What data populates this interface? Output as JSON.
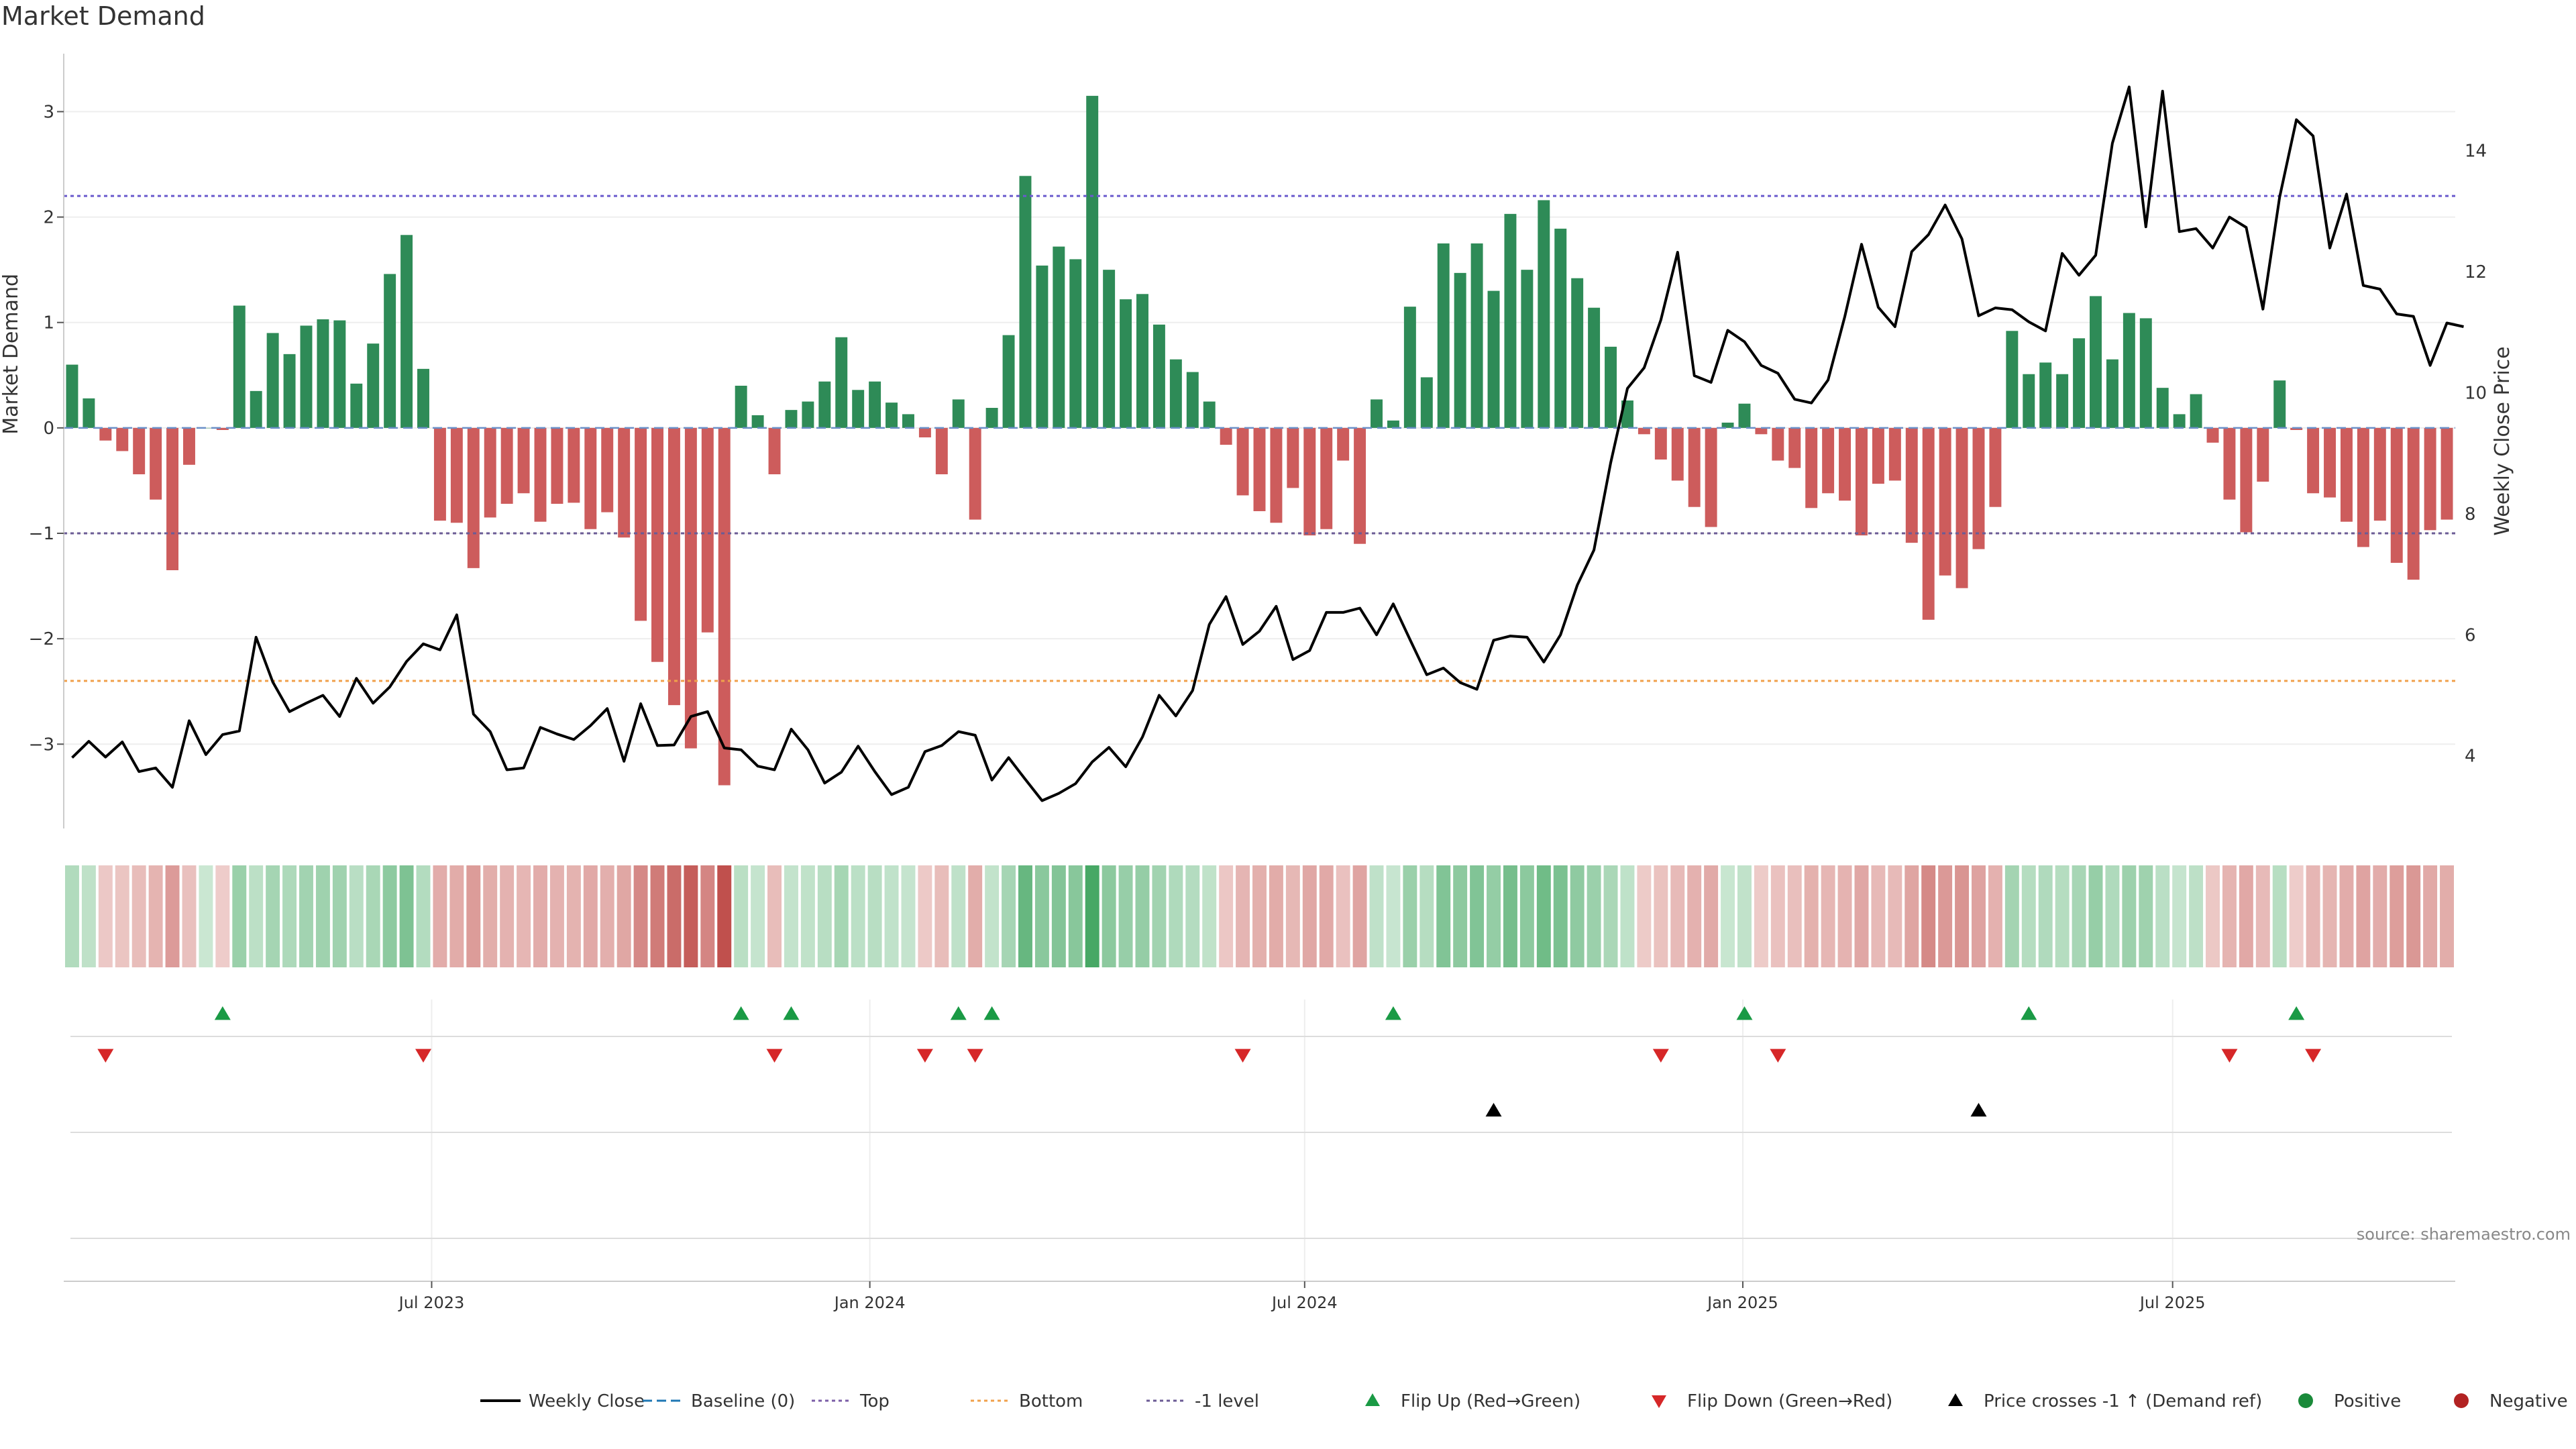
{
  "chart_data": {
    "type": "bar",
    "title": "Market Demand",
    "left_axis_label": "Market Demand",
    "right_axis_label": "Weekly Close Price",
    "left_ylim": [
      -3.8,
      3.55
    ],
    "right_ylim": [
      2.8,
      15.6
    ],
    "left_ticks": [
      -3,
      -2,
      -1,
      0,
      1,
      2,
      3
    ],
    "right_ticks": [
      4,
      6,
      8,
      10,
      12,
      14
    ],
    "x_tick_labels": [
      "Jul 2023",
      "Jan 2024",
      "Jul 2024",
      "Jan 2025",
      "Jul 2025"
    ],
    "x_tick_index": [
      21.5,
      47.7,
      73.7,
      99.9,
      125.6
    ],
    "top_level": 2.2,
    "bottom_level": -2.4,
    "minus_one_level": -1.0,
    "demand": [
      0.6,
      0.28,
      -0.12,
      -0.22,
      -0.44,
      -0.68,
      -1.35,
      -0.35,
      0.0,
      -0.02,
      1.16,
      0.35,
      0.9,
      0.7,
      0.97,
      1.03,
      1.02,
      0.42,
      0.8,
      1.46,
      1.83,
      0.56,
      -0.88,
      -0.9,
      -1.33,
      -0.85,
      -0.72,
      -0.62,
      -0.89,
      -0.72,
      -0.71,
      -0.96,
      -0.8,
      -1.04,
      -1.83,
      -2.22,
      -2.63,
      -3.04,
      -1.94,
      -3.39,
      0.4,
      0.12,
      -0.44,
      0.17,
      0.25,
      0.44,
      0.86,
      0.36,
      0.44,
      0.24,
      0.13,
      -0.09,
      -0.44,
      0.27,
      -0.87,
      0.19,
      0.88,
      2.39,
      1.54,
      1.72,
      1.6,
      3.15,
      1.5,
      1.22,
      1.27,
      0.98,
      0.65,
      0.53,
      0.25,
      -0.16,
      -0.64,
      -0.79,
      -0.9,
      -0.57,
      -1.02,
      -0.96,
      -0.31,
      -1.1,
      0.27,
      0.07,
      1.15,
      0.48,
      1.75,
      1.47,
      1.75,
      1.3,
      2.03,
      1.5,
      2.16,
      1.89,
      1.42,
      1.14,
      0.77,
      0.26,
      -0.06,
      -0.3,
      -0.5,
      -0.75,
      -0.94,
      0.05,
      0.23,
      -0.06,
      -0.31,
      -0.38,
      -0.76,
      -0.62,
      -0.69,
      -1.02,
      -0.53,
      -0.5,
      -1.09,
      -1.82,
      -1.4,
      -1.52,
      -1.15,
      -0.75,
      0.92,
      0.51,
      0.62,
      0.51,
      0.85,
      1.25,
      0.65,
      1.09,
      1.04,
      0.38,
      0.13,
      0.32,
      -0.14,
      -0.68,
      -0.99,
      -0.51,
      0.45,
      -0.02,
      -0.62,
      -0.66,
      -0.89,
      -1.13,
      -0.88,
      -1.28,
      -1.44,
      -0.97,
      -0.87
    ],
    "weekly_close": [
      3.97,
      4.24,
      3.98,
      4.23,
      3.74,
      3.8,
      3.48,
      4.58,
      4.02,
      4.35,
      4.41,
      5.96,
      5.22,
      4.73,
      4.87,
      5.0,
      4.65,
      5.28,
      4.87,
      5.14,
      5.56,
      5.85,
      5.75,
      6.33,
      4.69,
      4.4,
      3.77,
      3.8,
      4.47,
      4.36,
      4.27,
      4.5,
      4.78,
      3.91,
      4.86,
      4.17,
      4.18,
      4.65,
      4.73,
      4.13,
      4.1,
      3.83,
      3.77,
      4.44,
      4.1,
      3.55,
      3.73,
      4.16,
      3.74,
      3.36,
      3.48,
      4.07,
      4.17,
      4.4,
      4.34,
      3.6,
      3.97,
      3.61,
      3.26,
      3.38,
      3.54,
      3.9,
      4.14,
      3.82,
      4.31,
      5.0,
      4.66,
      5.08,
      6.17,
      6.63,
      5.84,
      6.06,
      6.47,
      5.59,
      5.74,
      6.37,
      6.37,
      6.44,
      6.0,
      6.51,
      5.92,
      5.34,
      5.45,
      5.21,
      5.1,
      5.91,
      5.98,
      5.96,
      5.55,
      6.0,
      6.82,
      7.4,
      8.84,
      10.07,
      10.41,
      11.2,
      12.32,
      10.28,
      10.17,
      11.03,
      10.84,
      10.45,
      10.32,
      9.89,
      9.83,
      10.21,
      11.26,
      12.45,
      11.41,
      11.09,
      12.33,
      12.61,
      13.1,
      12.54,
      11.27,
      11.4,
      11.37,
      11.17,
      11.02,
      12.3,
      11.94,
      12.27,
      14.12,
      15.05,
      12.74,
      14.98,
      12.66,
      12.71,
      12.39,
      12.9,
      12.73,
      11.38,
      13.23,
      14.51,
      14.24,
      12.39,
      13.28,
      11.77,
      11.71,
      11.3,
      11.26,
      10.45,
      11.15,
      11.09
    ],
    "flip_up": [
      9,
      40,
      43,
      53,
      55,
      79,
      100,
      117,
      133
    ],
    "flip_down": [
      2,
      21,
      42,
      51,
      54,
      70,
      95,
      102,
      129,
      134
    ],
    "price_cross": [
      85,
      114
    ],
    "legend": [
      {
        "label": "Weekly Close",
        "kind": "line",
        "color": "#000000"
      },
      {
        "label": "Baseline (0)",
        "kind": "dash",
        "color": "#1f77b4"
      },
      {
        "label": "Top",
        "kind": "dot",
        "color": "#7b5ea7"
      },
      {
        "label": "Bottom",
        "kind": "dot",
        "color": "#f0a04b"
      },
      {
        "label": "-1 level",
        "kind": "dot",
        "color": "#6b5b95"
      },
      {
        "label": "Flip Up (Red→Green)",
        "kind": "tri-up",
        "color": "#1a9a45"
      },
      {
        "label": "Flip Down (Green→Red)",
        "kind": "tri-down",
        "color": "#d62728"
      },
      {
        "label": "Price crosses -1 ↑ (Demand ref)",
        "kind": "tri-up",
        "color": "#000000"
      },
      {
        "label": "Positive",
        "kind": "circle",
        "color": "#1a8a3a"
      },
      {
        "label": "Negative",
        "kind": "circle",
        "color": "#b22222"
      }
    ],
    "source": "source: sharemaestro.com"
  },
  "colors": {
    "positive": "#2e8b57",
    "negative": "#cd5c5c",
    "line": "#000000",
    "top": "#6a5acd",
    "bottom": "#f0a04b",
    "minus_one": "#6b5b95"
  }
}
